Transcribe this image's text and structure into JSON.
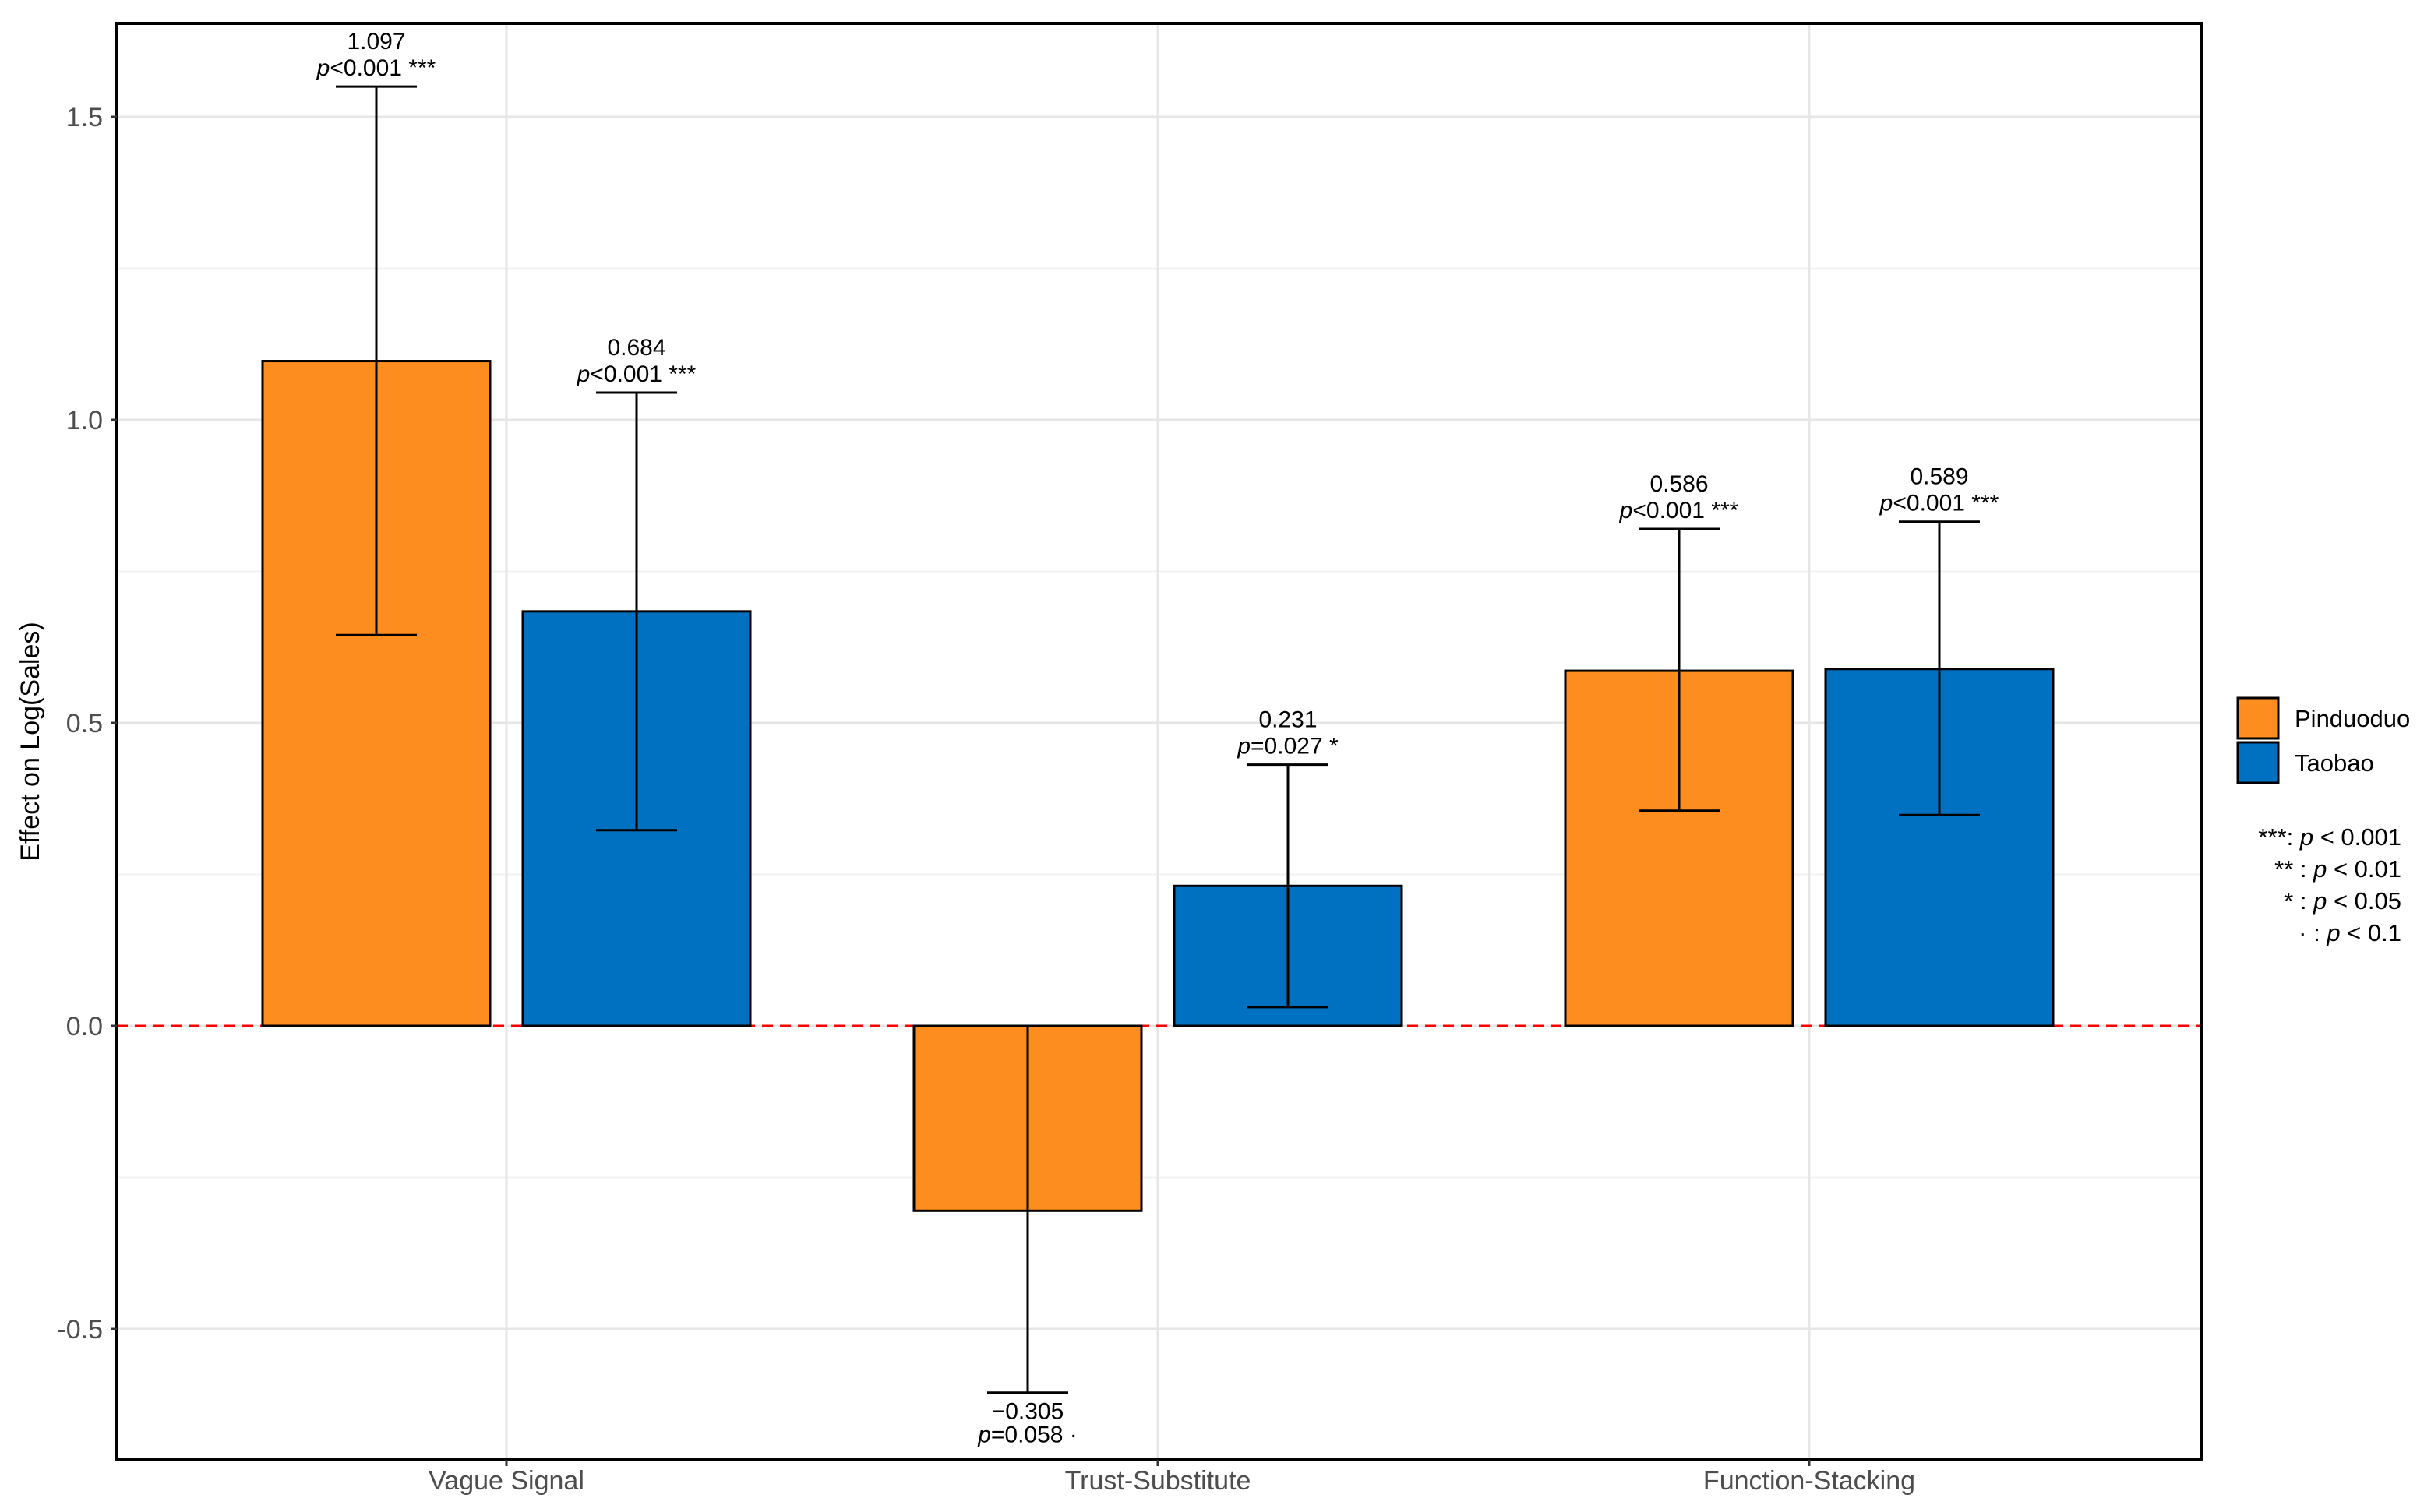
{
  "chart_data": {
    "type": "bar",
    "title": "",
    "xlabel": "",
    "ylabel": "Effect on Log(Sales)",
    "categories": [
      "Vague Signal",
      "Trust-Substitute",
      "Function-Stacking"
    ],
    "ylim": [
      -0.7,
      1.65
    ],
    "yticks": [
      -0.5,
      0.0,
      0.5,
      1.0,
      1.5
    ],
    "ytick_labels": [
      "-0.5",
      "0.0",
      "0.5",
      "1.0",
      "1.5"
    ],
    "grid": true,
    "reference_line": {
      "y": 0,
      "style": "dashed",
      "color": "#ff0000"
    },
    "legend_position": "right",
    "series": [
      {
        "name": "Pinduoduo",
        "color": "#fd8d1e",
        "values": [
          1.097,
          -0.305,
          0.586
        ],
        "ci_low": [
          0.645,
          -0.605,
          0.355
        ],
        "ci_high": [
          1.55,
          0.0,
          0.82
        ],
        "value_labels": [
          "1.097",
          "−0.305",
          "0.586"
        ],
        "p_labels": [
          "<0.001 ***",
          "=0.058 ·",
          "<0.001 ***"
        ]
      },
      {
        "name": "Taobao",
        "color": "#0070c0",
        "values": [
          0.684,
          0.231,
          0.589
        ],
        "ci_low": [
          0.323,
          0.031,
          0.348
        ],
        "ci_high": [
          1.045,
          0.431,
          0.832
        ],
        "value_labels": [
          "0.684",
          "0.231",
          "0.589"
        ],
        "p_labels": [
          "<0.001 ***",
          "=0.027 *",
          "<0.001 ***"
        ]
      }
    ],
    "significance_legend": [
      {
        "stars": "***",
        "rest": " < 0.001"
      },
      {
        "stars": "** ",
        "rest": " < 0.01"
      },
      {
        "stars": "* ",
        "rest": " < 0.05"
      },
      {
        "stars": "· ",
        "rest": " < 0.1"
      }
    ]
  }
}
